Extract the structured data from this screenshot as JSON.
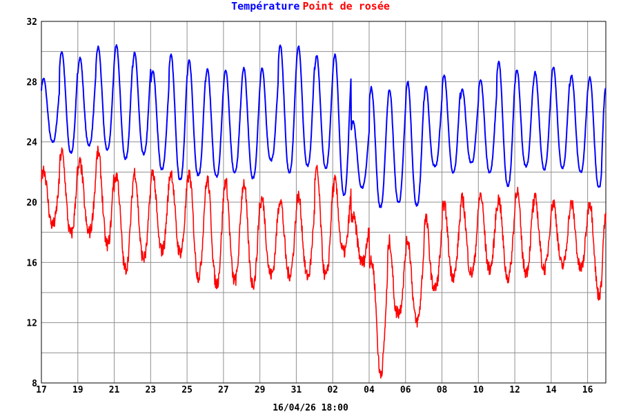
{
  "legend": {
    "temperature_label": "Température",
    "dewpoint_label": "Point de rosée",
    "temperature_color": "#0000ff",
    "dewpoint_color": "#ff0000"
  },
  "footer": {
    "timestamp": "16/04/26 18:00"
  },
  "chart_data": {
    "type": "line",
    "title": "",
    "xlabel": "",
    "ylabel": "",
    "ylim": [
      8,
      32
    ],
    "yticks": [
      8,
      12,
      16,
      20,
      24,
      28,
      32
    ],
    "xlim": [
      0,
      31
    ],
    "x_tick_positions": [
      0,
      2,
      4,
      6,
      8,
      10,
      12,
      14,
      16,
      18,
      20,
      22,
      24,
      26,
      28,
      30
    ],
    "x_tick_labels": [
      "17",
      "19",
      "21",
      "23",
      "25",
      "27",
      "29",
      "31",
      "02",
      "04",
      "06",
      "08",
      "10",
      "12",
      "14",
      "16"
    ],
    "grid": true,
    "series": [
      {
        "name": "Température",
        "color": "#0000ff",
        "daily_min": [
          24.0,
          23.3,
          23.8,
          23.5,
          22.9,
          23.2,
          22.2,
          21.5,
          21.8,
          21.7,
          22.0,
          21.6,
          22.8,
          22.0,
          22.4,
          22.3,
          20.5,
          21.0,
          19.7,
          20.0,
          19.8,
          22.4,
          22.0,
          22.6,
          22.0,
          21.1,
          22.4,
          22.2,
          22.3,
          22.0,
          21.0
        ],
        "daily_max": [
          28.2,
          30.0,
          29.6,
          30.3,
          30.4,
          29.9,
          28.7,
          29.8,
          29.4,
          28.8,
          28.8,
          28.9,
          28.9,
          30.4,
          30.4,
          29.7,
          29.8,
          25.4,
          27.6,
          27.5,
          28.0,
          27.7,
          28.4,
          27.5,
          28.1,
          29.3,
          28.8,
          28.6,
          29.0,
          28.4,
          28.3
        ],
        "last_value": 27.6
      },
      {
        "name": "Point de rosée",
        "color": "#ff0000",
        "daily_min": [
          18.5,
          17.9,
          18.0,
          17.2,
          15.6,
          16.3,
          16.8,
          16.7,
          15.1,
          14.6,
          14.8,
          14.6,
          15.2,
          15.2,
          15.1,
          15.1,
          16.7,
          16.0,
          8.7,
          12.7,
          12.1,
          14.3,
          15.1,
          15.3,
          15.6,
          15.0,
          15.4,
          15.6,
          15.8,
          15.6,
          13.9
        ],
        "daily_max": [
          22.2,
          23.3,
          22.6,
          23.3,
          21.8,
          22.0,
          22.0,
          22.0,
          21.8,
          21.5,
          21.4,
          21.3,
          20.2,
          20.2,
          20.4,
          22.1,
          21.4,
          19.0,
          16.0,
          17.4,
          17.5,
          18.9,
          19.9,
          20.2,
          20.5,
          20.2,
          20.8,
          20.2,
          20.0,
          19.9,
          20.0
        ],
        "last_value": 18.9
      }
    ]
  }
}
